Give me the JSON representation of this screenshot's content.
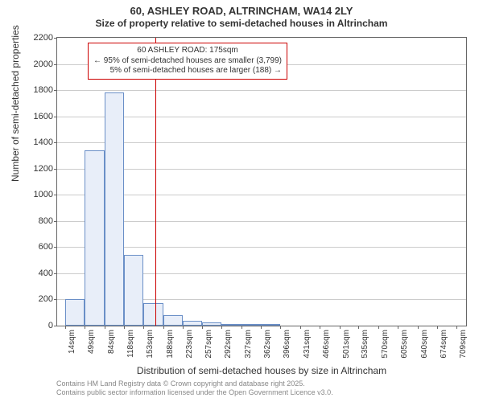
{
  "title_main": "60, ASHLEY ROAD, ALTRINCHAM, WA14 2LY",
  "title_sub": "Size of property relative to semi-detached houses in Altrincham",
  "ylabel": "Number of semi-detached properties",
  "xlabel": "Distribution of semi-detached houses by size in Altrincham",
  "footer_line1": "Contains HM Land Registry data © Crown copyright and database right 2025.",
  "footer_line2": "Contains public sector information licensed under the Open Government Licence v3.0.",
  "annotation": {
    "line1": "60 ASHLEY ROAD: 175sqm",
    "line2": "← 95% of semi-detached houses are smaller (3,799)",
    "line3": "5% of semi-detached houses are larger (188) →"
  },
  "chart": {
    "type": "histogram",
    "background": "#ffffff",
    "grid_color": "#cccccc",
    "axis_color": "#666666",
    "bar_fill": "#e8eef9",
    "bar_stroke": "#6a8fc7",
    "marker_color": "#cc0000",
    "marker_x_value": 175,
    "ylim": [
      0,
      2200
    ],
    "yticks": [
      0,
      200,
      400,
      600,
      800,
      1000,
      1200,
      1400,
      1600,
      1800,
      2000,
      2200
    ],
    "xlim": [
      0,
      726
    ],
    "xticks": [
      {
        "v": 14,
        "label": "14sqm"
      },
      {
        "v": 49,
        "label": "49sqm"
      },
      {
        "v": 84,
        "label": "84sqm"
      },
      {
        "v": 118,
        "label": "118sqm"
      },
      {
        "v": 153,
        "label": "153sqm"
      },
      {
        "v": 188,
        "label": "188sqm"
      },
      {
        "v": 223,
        "label": "223sqm"
      },
      {
        "v": 257,
        "label": "257sqm"
      },
      {
        "v": 292,
        "label": "292sqm"
      },
      {
        "v": 327,
        "label": "327sqm"
      },
      {
        "v": 362,
        "label": "362sqm"
      },
      {
        "v": 396,
        "label": "396sqm"
      },
      {
        "v": 431,
        "label": "431sqm"
      },
      {
        "v": 466,
        "label": "466sqm"
      },
      {
        "v": 501,
        "label": "501sqm"
      },
      {
        "v": 535,
        "label": "535sqm"
      },
      {
        "v": 570,
        "label": "570sqm"
      },
      {
        "v": 605,
        "label": "605sqm"
      },
      {
        "v": 640,
        "label": "640sqm"
      },
      {
        "v": 674,
        "label": "674sqm"
      },
      {
        "v": 709,
        "label": "709sqm"
      }
    ],
    "bars": [
      {
        "x0": 14,
        "x1": 49,
        "y": 200
      },
      {
        "x0": 49,
        "x1": 84,
        "y": 1340
      },
      {
        "x0": 84,
        "x1": 118,
        "y": 1780
      },
      {
        "x0": 118,
        "x1": 153,
        "y": 540
      },
      {
        "x0": 153,
        "x1": 188,
        "y": 170
      },
      {
        "x0": 188,
        "x1": 223,
        "y": 80
      },
      {
        "x0": 223,
        "x1": 257,
        "y": 40
      },
      {
        "x0": 257,
        "x1": 292,
        "y": 25
      },
      {
        "x0": 292,
        "x1": 327,
        "y": 15
      },
      {
        "x0": 327,
        "x1": 362,
        "y": 10
      },
      {
        "x0": 362,
        "x1": 396,
        "y": 5
      },
      {
        "x0": 396,
        "x1": 431,
        "y": 3
      },
      {
        "x0": 431,
        "x1": 466,
        "y": 3
      },
      {
        "x0": 466,
        "x1": 501,
        "y": 2
      },
      {
        "x0": 501,
        "x1": 535,
        "y": 2
      },
      {
        "x0": 535,
        "x1": 570,
        "y": 2
      },
      {
        "x0": 570,
        "x1": 605,
        "y": 1
      },
      {
        "x0": 605,
        "x1": 640,
        "y": 1
      },
      {
        "x0": 640,
        "x1": 674,
        "y": 1
      },
      {
        "x0": 674,
        "x1": 709,
        "y": 1
      }
    ]
  }
}
